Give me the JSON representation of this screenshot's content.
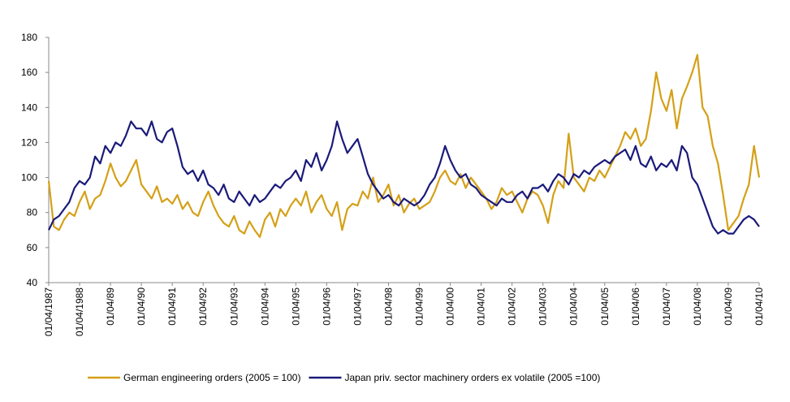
{
  "chart_data": {
    "type": "line",
    "x": [
      "1987-04",
      "1987-06",
      "1987-08",
      "1987-10",
      "1987-12",
      "1988-02",
      "1988-04",
      "1988-06",
      "1988-08",
      "1988-10",
      "1988-12",
      "1989-02",
      "1989-04",
      "1989-06",
      "1989-08",
      "1989-10",
      "1989-12",
      "1990-02",
      "1990-04",
      "1990-06",
      "1990-08",
      "1990-10",
      "1990-12",
      "1991-02",
      "1991-04",
      "1991-06",
      "1991-08",
      "1991-10",
      "1991-12",
      "1992-02",
      "1992-04",
      "1992-06",
      "1992-08",
      "1992-10",
      "1992-12",
      "1993-02",
      "1993-04",
      "1993-06",
      "1993-08",
      "1993-10",
      "1993-12",
      "1994-02",
      "1994-04",
      "1994-06",
      "1994-08",
      "1994-10",
      "1994-12",
      "1995-02",
      "1995-04",
      "1995-06",
      "1995-08",
      "1995-10",
      "1995-12",
      "1996-02",
      "1996-04",
      "1996-06",
      "1996-08",
      "1996-10",
      "1996-12",
      "1997-02",
      "1997-04",
      "1997-06",
      "1997-08",
      "1997-10",
      "1997-12",
      "1998-02",
      "1998-04",
      "1998-06",
      "1998-08",
      "1998-10",
      "1998-12",
      "1999-02",
      "1999-04",
      "1999-06",
      "1999-08",
      "1999-10",
      "1999-12",
      "2000-02",
      "2000-04",
      "2000-06",
      "2000-08",
      "2000-10",
      "2000-12",
      "2001-02",
      "2001-04",
      "2001-06",
      "2001-08",
      "2001-10",
      "2001-12",
      "2002-02",
      "2002-04",
      "2002-06",
      "2002-08",
      "2002-10",
      "2002-12",
      "2003-02",
      "2003-04",
      "2003-06",
      "2003-08",
      "2003-10",
      "2003-12",
      "2004-02",
      "2004-04",
      "2004-06",
      "2004-08",
      "2004-10",
      "2004-12",
      "2005-02",
      "2005-04",
      "2005-06",
      "2005-08",
      "2005-10",
      "2005-12",
      "2006-02",
      "2006-04",
      "2006-06",
      "2006-08",
      "2006-10",
      "2006-12",
      "2007-02",
      "2007-04",
      "2007-06",
      "2007-08",
      "2007-10",
      "2007-12",
      "2008-02",
      "2008-04",
      "2008-06",
      "2008-08",
      "2008-10",
      "2008-12",
      "2009-02",
      "2009-04",
      "2009-06",
      "2009-08",
      "2009-10",
      "2009-12",
      "2010-02",
      "2010-04"
    ],
    "series": [
      {
        "name": "German engineering orders (2005 = 100)",
        "color": "#d4a017",
        "values": [
          98,
          72,
          70,
          76,
          80,
          78,
          86,
          92,
          82,
          88,
          90,
          98,
          108,
          100,
          95,
          98,
          104,
          110,
          96,
          92,
          88,
          95,
          86,
          88,
          85,
          90,
          82,
          86,
          80,
          78,
          86,
          92,
          84,
          78,
          74,
          72,
          78,
          70,
          68,
          75,
          70,
          66,
          76,
          80,
          72,
          82,
          78,
          84,
          88,
          84,
          92,
          80,
          86,
          90,
          82,
          78,
          86,
          70,
          82,
          85,
          84,
          92,
          88,
          100,
          86,
          90,
          96,
          84,
          90,
          80,
          85,
          88,
          82,
          84,
          86,
          92,
          100,
          104,
          98,
          96,
          102,
          94,
          100,
          96,
          92,
          88,
          82,
          86,
          94,
          90,
          92,
          86,
          80,
          88,
          92,
          90,
          84,
          74,
          90,
          98,
          94,
          125,
          100,
          96,
          92,
          100,
          98,
          104,
          100,
          106,
          112,
          118,
          126,
          122,
          128,
          118,
          122,
          138,
          160,
          145,
          138,
          150,
          128,
          145,
          152,
          160,
          170,
          140,
          135,
          118,
          108,
          90,
          70,
          74,
          78,
          88,
          96,
          118,
          100
        ]
      },
      {
        "name": "Japan priv. sector machinery orders ex volatile (2005 =100)",
        "color": "#1a1a7a",
        "values": [
          70,
          76,
          78,
          82,
          86,
          94,
          98,
          96,
          100,
          112,
          108,
          118,
          114,
          120,
          118,
          124,
          132,
          128,
          128,
          124,
          132,
          122,
          120,
          126,
          128,
          118,
          106,
          102,
          104,
          98,
          104,
          96,
          94,
          90,
          96,
          88,
          86,
          92,
          88,
          84,
          90,
          86,
          88,
          92,
          96,
          94,
          98,
          100,
          104,
          98,
          110,
          106,
          114,
          104,
          110,
          118,
          132,
          122,
          114,
          118,
          122,
          112,
          102,
          96,
          92,
          88,
          90,
          86,
          84,
          88,
          86,
          84,
          86,
          90,
          96,
          100,
          108,
          118,
          110,
          104,
          100,
          102,
          96,
          94,
          90,
          88,
          86,
          84,
          88,
          86,
          86,
          90,
          92,
          88,
          94,
          94,
          96,
          92,
          98,
          102,
          100,
          96,
          102,
          100,
          104,
          102,
          106,
          108,
          110,
          108,
          112,
          114,
          116,
          110,
          118,
          108,
          106,
          112,
          104,
          108,
          106,
          110,
          104,
          118,
          114,
          100,
          96,
          88,
          80,
          72,
          68,
          70,
          68,
          68,
          72,
          76,
          78,
          76,
          72
        ]
      }
    ],
    "xlim": [
      "1987-04",
      "2010-04"
    ],
    "xticks": [
      {
        "value": "1987-04",
        "label": "01/04/1987"
      },
      {
        "value": "1988-04",
        "label": "01/04/1988"
      },
      {
        "value": "1989-04",
        "label": "01/04/89"
      },
      {
        "value": "1990-04",
        "label": "01/04/90"
      },
      {
        "value": "1991-04",
        "label": "01/04/91"
      },
      {
        "value": "1992-04",
        "label": "01/04/92"
      },
      {
        "value": "1993-04",
        "label": "01/04/93"
      },
      {
        "value": "1994-04",
        "label": "01/04/94"
      },
      {
        "value": "1995-04",
        "label": "01/04/95"
      },
      {
        "value": "1996-04",
        "label": "01/04/96"
      },
      {
        "value": "1997-04",
        "label": "01/04/97"
      },
      {
        "value": "1998-04",
        "label": "01/04/98"
      },
      {
        "value": "1999-04",
        "label": "01/04/99"
      },
      {
        "value": "2000-04",
        "label": "01/04/00"
      },
      {
        "value": "2001-04",
        "label": "01/04/01"
      },
      {
        "value": "2002-04",
        "label": "01/04/02"
      },
      {
        "value": "2003-04",
        "label": "01/04/03"
      },
      {
        "value": "2004-04",
        "label": "01/04/04"
      },
      {
        "value": "2005-04",
        "label": "01/04/05"
      },
      {
        "value": "2006-04",
        "label": "01/04/06"
      },
      {
        "value": "2007-04",
        "label": "01/04/07"
      },
      {
        "value": "2008-04",
        "label": "01/04/08"
      },
      {
        "value": "2009-04",
        "label": "01/04/09"
      },
      {
        "value": "2010-04",
        "label": "01/04/10"
      }
    ],
    "ylim": [
      40,
      180
    ],
    "yticks": [
      40,
      60,
      80,
      100,
      120,
      140,
      160,
      180
    ],
    "legend": "bottom"
  }
}
